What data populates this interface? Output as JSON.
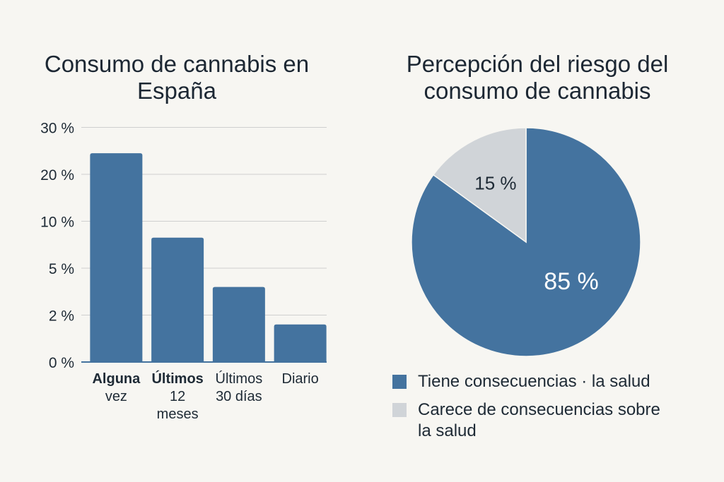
{
  "bar_chart_title": "Consumo de cannabis en España",
  "pie_chart_title": "Percepción del riesgo del consumo de cannabis",
  "colors": {
    "primary": "#44739f",
    "secondary": "#d0d4d8",
    "grid": "#cfcfcf"
  },
  "chart_data": [
    {
      "type": "bar",
      "title": "Consumo de cannabis en España",
      "categories": [
        "Alguna vez",
        "Últimos 12 meses",
        "Últimos 30 días",
        "Diario"
      ],
      "category_lines": [
        [
          "Alguna",
          "vez"
        ],
        [
          "Últimos",
          "12",
          "meses"
        ],
        [
          "Últimos",
          "30 días"
        ],
        [
          "Diario"
        ]
      ],
      "bold_first_line": [
        true,
        true,
        false,
        false
      ],
      "y_tick_labels": [
        "0 %",
        "2 %",
        "5 %",
        "10 %",
        "20 %",
        "30 %"
      ],
      "values_scale_index": [
        4.45,
        2.65,
        1.6,
        0.8
      ],
      "note": "",
      "grid": true
    },
    {
      "type": "pie",
      "title": "Percepción del riesgo del consumo de cannabis",
      "labels": [
        "Tiene consecuencias · la salud",
        "Carece de consecuencias sobre la salud"
      ],
      "values": [
        85,
        15
      ],
      "value_labels": [
        "85 %",
        "15 %"
      ],
      "legend_position": "bottom"
    }
  ]
}
